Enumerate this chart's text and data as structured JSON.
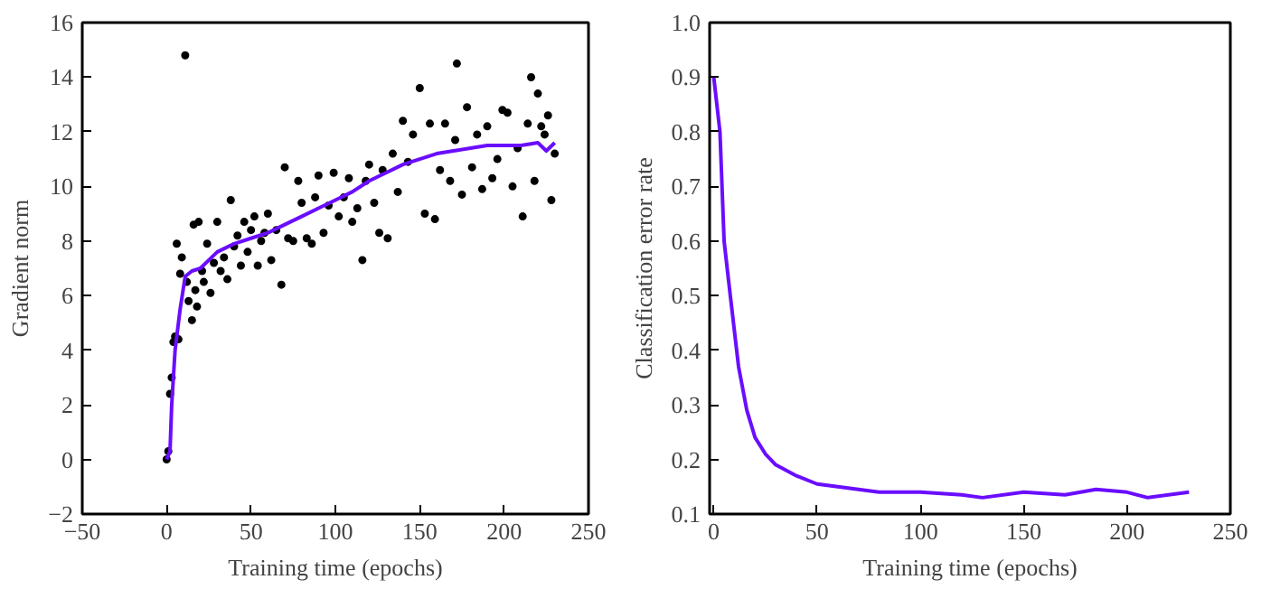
{
  "chart_data": [
    {
      "type": "scatter",
      "xlabel": "Training time (epochs)",
      "ylabel": "Gradient norm",
      "xlim": [
        -50,
        250
      ],
      "ylim": [
        -2,
        16
      ],
      "xticks": [
        -50,
        0,
        50,
        100,
        150,
        200,
        250
      ],
      "yticks": [
        -2,
        0,
        2,
        4,
        6,
        8,
        10,
        12,
        14,
        16
      ],
      "grid": false,
      "series": [
        {
          "marker": "circle",
          "color": "#000000",
          "x": [
            0,
            1,
            2,
            3,
            4,
            5,
            6,
            7,
            8,
            9,
            11,
            12,
            13,
            15,
            16,
            17,
            18,
            19,
            21,
            22,
            24,
            26,
            28,
            30,
            32,
            34,
            36,
            38,
            40,
            42,
            44,
            46,
            48,
            50,
            52,
            54,
            56,
            58,
            60,
            62,
            65,
            68,
            70,
            72,
            75,
            78,
            80,
            83,
            86,
            88,
            90,
            93,
            96,
            99,
            102,
            105,
            108,
            110,
            113,
            116,
            118,
            120,
            123,
            126,
            128,
            131,
            134,
            137,
            140,
            143,
            146,
            150,
            153,
            156,
            159,
            162,
            165,
            168,
            171,
            172,
            175,
            178,
            181,
            184,
            187,
            190,
            193,
            196,
            199,
            202,
            205,
            208,
            211,
            214,
            216,
            218,
            220,
            222,
            224,
            226,
            228,
            230
          ],
          "values": [
            0,
            0.3,
            2.4,
            3,
            4.3,
            4.5,
            7.9,
            4.4,
            6.8,
            7.4,
            14.8,
            6.5,
            5.8,
            5.1,
            8.6,
            6.2,
            5.6,
            8.7,
            6.9,
            6.5,
            7.9,
            6.1,
            7.2,
            8.7,
            6.9,
            7.4,
            6.6,
            9.5,
            7.8,
            8.2,
            7.1,
            8.7,
            7.6,
            8.4,
            8.9,
            7.1,
            8.0,
            8.3,
            9.0,
            7.3,
            8.4,
            6.4,
            10.7,
            8.1,
            8.0,
            10.2,
            9.4,
            8.1,
            7.9,
            9.6,
            10.4,
            8.3,
            9.3,
            10.5,
            8.9,
            9.6,
            10.3,
            8.7,
            9.2,
            7.3,
            10.2,
            10.8,
            9.4,
            8.3,
            10.6,
            8.1,
            11.2,
            9.8,
            12.4,
            10.9,
            11.9,
            13.6,
            9.0,
            12.3,
            8.8,
            10.6,
            12.3,
            10.2,
            11.7,
            14.5,
            9.7,
            12.9,
            10.7,
            11.9,
            9.9,
            12.2,
            10.3,
            11.0,
            12.8,
            12.7,
            10.0,
            11.4,
            8.9,
            12.3,
            14.0,
            10.2,
            13.4,
            12.2,
            11.9,
            12.6,
            9.5,
            11.2
          ]
        },
        {
          "type": "line",
          "color": "#6a0dff",
          "x": [
            0,
            2,
            3,
            5,
            8,
            11,
            15,
            20,
            30,
            40,
            50,
            60,
            70,
            80,
            90,
            100,
            110,
            120,
            130,
            140,
            150,
            160,
            170,
            180,
            190,
            200,
            210,
            220,
            225,
            230
          ],
          "values": [
            0,
            0.3,
            2,
            4,
            5.5,
            6.7,
            6.9,
            7,
            7.6,
            7.9,
            8.1,
            8.3,
            8.6,
            8.9,
            9.2,
            9.5,
            9.8,
            10.2,
            10.5,
            10.8,
            11.0,
            11.2,
            11.3,
            11.4,
            11.5,
            11.5,
            11.5,
            11.6,
            11.3,
            11.6
          ]
        }
      ]
    },
    {
      "type": "line",
      "xlabel": "Training time (epochs)",
      "ylabel": "Classification error rate",
      "xlim": [
        -2,
        250
      ],
      "ylim": [
        0.1,
        1.0
      ],
      "xticks": [
        0,
        50,
        100,
        150,
        200,
        250
      ],
      "yticks": [
        0.1,
        0.2,
        0.3,
        0.4,
        0.5,
        0.6,
        0.7,
        0.8,
        0.9,
        {
          "value": 1.0,
          "label": "1.0"
        }
      ],
      "grid": false,
      "series": [
        {
          "color": "#6a0dff",
          "x": [
            0,
            3,
            5,
            8,
            12,
            16,
            20,
            25,
            30,
            40,
            50,
            60,
            70,
            80,
            100,
            120,
            130,
            150,
            170,
            185,
            200,
            210,
            230
          ],
          "values": [
            0.9,
            0.8,
            0.6,
            0.5,
            0.37,
            0.29,
            0.24,
            0.21,
            0.19,
            0.17,
            0.155,
            0.15,
            0.145,
            0.14,
            0.14,
            0.135,
            0.13,
            0.14,
            0.135,
            0.145,
            0.14,
            0.13,
            0.14
          ]
        }
      ]
    }
  ]
}
